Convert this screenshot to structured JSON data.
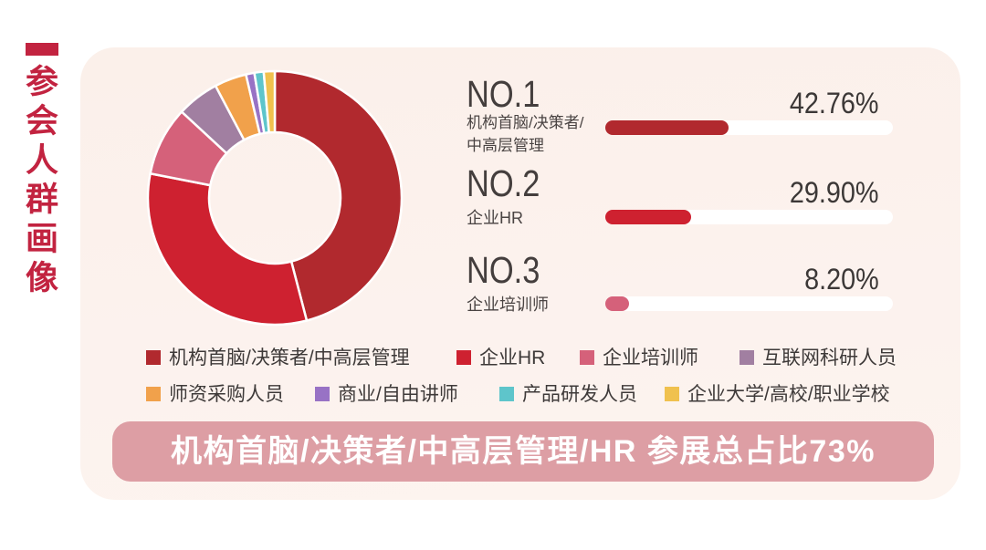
{
  "sidebar": {
    "title": "参会人群画像",
    "accent_color": "#c22340"
  },
  "chart_data": {
    "type": "pie",
    "subtype": "donut",
    "title": "参会人群画像",
    "unit": "%",
    "inner_radius_ratio": 0.52,
    "start_angle_deg": 0,
    "clockwise": true,
    "segments": [
      {
        "label": "机构首脑/决策者/中高层管理",
        "value": 42.76,
        "color": "#b1292e"
      },
      {
        "label": "企业HR",
        "value": 29.9,
        "color": "#ce2130"
      },
      {
        "label": "企业培训师",
        "value": 8.2,
        "color": "#d5617a"
      },
      {
        "label": "互联网科研人员",
        "value": 5.0,
        "color": "#a17fa1"
      },
      {
        "label": "师资采购人员",
        "value": 3.8,
        "color": "#f1a14b"
      },
      {
        "label": "商业/自由讲师",
        "value": 1.0,
        "color": "#9872c5"
      },
      {
        "label": "产品研发人员",
        "value": 1.1,
        "color": "#5ec5cb"
      },
      {
        "label": "企业大学/高校/职业学校",
        "value": 1.3,
        "color": "#f0c14e"
      }
    ]
  },
  "rankings": [
    {
      "rank": "NO.1",
      "label": "机构首脑/决策者/\n中高层管理",
      "percent": "42.76%",
      "value": 42.76,
      "bar_color": "#b1292e"
    },
    {
      "rank": "NO.2",
      "label": "企业HR",
      "percent": "29.90%",
      "value": 29.9,
      "bar_color": "#ce2130"
    },
    {
      "rank": "NO.3",
      "label": "企业培训师",
      "percent": "8.20%",
      "value": 8.2,
      "bar_color": "#d5617a"
    }
  ],
  "banner": {
    "text": "机构首脑/决策者/中高层管理/HR 参展总占比73%",
    "bg_color": "#dd9ea4",
    "text_color": "#ffffff"
  },
  "colors": {
    "panel_bg_top": "#fbf0ea",
    "panel_bg_bottom": "#fdf4ef",
    "bar_track": "#ffffff",
    "text_dark": "#443e3d"
  }
}
